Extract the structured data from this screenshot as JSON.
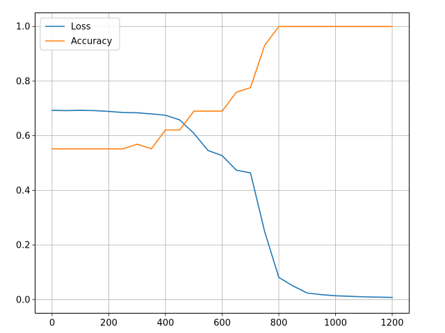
{
  "chart_data": {
    "type": "line",
    "title": "",
    "xlabel": "",
    "ylabel": "",
    "xlim": [
      -60,
      1260
    ],
    "ylim": [
      -0.05,
      1.05
    ],
    "xticks": [
      0,
      200,
      400,
      600,
      800,
      1000,
      1200
    ],
    "yticks": [
      0.0,
      0.2,
      0.4,
      0.6,
      0.8,
      1.0
    ],
    "xtick_labels": [
      "0",
      "200",
      "400",
      "600",
      "800",
      "1000",
      "1200"
    ],
    "ytick_labels": [
      "0.0",
      "0.2",
      "0.4",
      "0.6",
      "0.8",
      "1.0"
    ],
    "grid": true,
    "legend": "top-left",
    "x": [
      0,
      50,
      100,
      150,
      200,
      250,
      300,
      350,
      400,
      450,
      500,
      550,
      600,
      650,
      700,
      750,
      800,
      850,
      900,
      950,
      1000,
      1050,
      1100,
      1150,
      1200
    ],
    "series": [
      {
        "name": "Loss",
        "color": "#1f77b4",
        "values": [
          0.693,
          0.692,
          0.693,
          0.692,
          0.689,
          0.685,
          0.684,
          0.68,
          0.675,
          0.658,
          0.609,
          0.546,
          0.527,
          0.474,
          0.464,
          0.249,
          0.081,
          0.05,
          0.024,
          0.018,
          0.014,
          0.012,
          0.01,
          0.009,
          0.008
        ]
      },
      {
        "name": "Accuracy",
        "color": "#ff7f0e",
        "values": [
          0.552,
          0.552,
          0.552,
          0.552,
          0.552,
          0.552,
          0.569,
          0.552,
          0.621,
          0.621,
          0.69,
          0.69,
          0.69,
          0.759,
          0.776,
          0.931,
          1.0,
          1.0,
          1.0,
          1.0,
          1.0,
          1.0,
          1.0,
          1.0,
          1.0
        ]
      }
    ]
  }
}
